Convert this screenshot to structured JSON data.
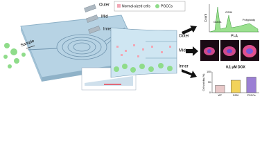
{
  "chip": {
    "sample": "Sample",
    "outlets": [
      "Outer",
      "Mid",
      "Inner"
    ]
  },
  "legend": {
    "items": [
      "Normal-sized cells",
      "PGCCs"
    ]
  },
  "channel": {
    "labels": [
      "Outer",
      "Mid",
      "Inner"
    ]
  },
  "histogram": {
    "y_label": "Count",
    "x_label": "PI-A",
    "phases": [
      "G0/G1",
      "G2/M",
      "Polyploidy"
    ]
  },
  "bar_chart": {
    "title": "0.1 μM DOX",
    "y_label": "Cell viability (%)",
    "categories": [
      "WT",
      "G2/M",
      "PGCCs"
    ],
    "values": [
      35,
      60,
      75
    ],
    "colors": [
      "#e8c8c8",
      "#f2d35a",
      "#9b7fd4"
    ],
    "ylim": [
      0,
      100
    ],
    "yticks": [
      0,
      50,
      100
    ]
  }
}
